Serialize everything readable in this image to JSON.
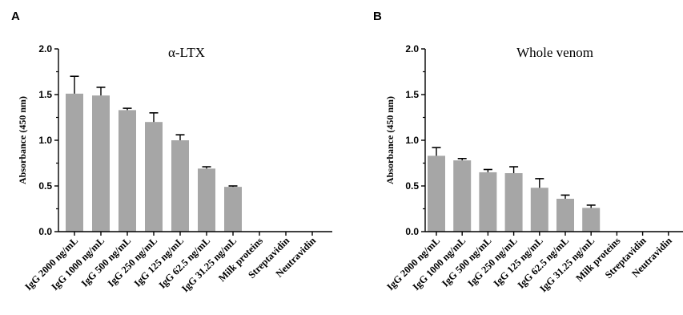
{
  "chart_data": [
    {
      "type": "bar",
      "panel": "A",
      "title": "α-LTX",
      "ylabel": "Absorbance (450  nm)",
      "xlabel": "",
      "ylim": [
        0,
        2.0
      ],
      "yticks": [
        "0.0",
        "0.5",
        "1.0",
        "1.5",
        "2.0"
      ],
      "categories": [
        "IgG 2000 ng/mL",
        "IgG 1000 ng/mL",
        "IgG 500 ng/mL",
        "IgG 250 ng/mL",
        "IgG 125 ng/mL",
        "IgG 62.5 ng/mL",
        "IgG 31.25 ng/mL",
        "Milk proteins",
        "Streptavidin",
        "Neutravidin"
      ],
      "values": [
        1.51,
        1.49,
        1.33,
        1.2,
        1.0,
        0.69,
        0.49,
        0,
        0,
        0
      ],
      "errors": [
        0.19,
        0.09,
        0.02,
        0.1,
        0.06,
        0.02,
        0.01,
        0,
        0,
        0
      ],
      "bar_color": "#a6a6a6",
      "grid": false
    },
    {
      "type": "bar",
      "panel": "B",
      "title": "Whole venom",
      "ylabel": "Absorbance (450  nm)",
      "xlabel": "",
      "ylim": [
        0,
        2.0
      ],
      "yticks": [
        "0.0",
        "0.5",
        "1.0",
        "1.5",
        "2.0"
      ],
      "categories": [
        "IgG 2000 ng/mL",
        "IgG 1000 ng/mL",
        "IgG 500 ng/mL",
        "IgG 250 ng/mL",
        "IgG 125 ng/mL",
        "IgG 62.5 ng/mL",
        "IgG 31.25 ng/mL",
        "Milk proteins",
        "Streptavidin",
        "Neutravidin"
      ],
      "values": [
        0.83,
        0.78,
        0.65,
        0.64,
        0.48,
        0.36,
        0.26,
        0,
        0,
        0
      ],
      "errors": [
        0.09,
        0.02,
        0.03,
        0.07,
        0.1,
        0.04,
        0.03,
        0,
        0,
        0
      ],
      "bar_color": "#a6a6a6",
      "grid": false
    }
  ]
}
